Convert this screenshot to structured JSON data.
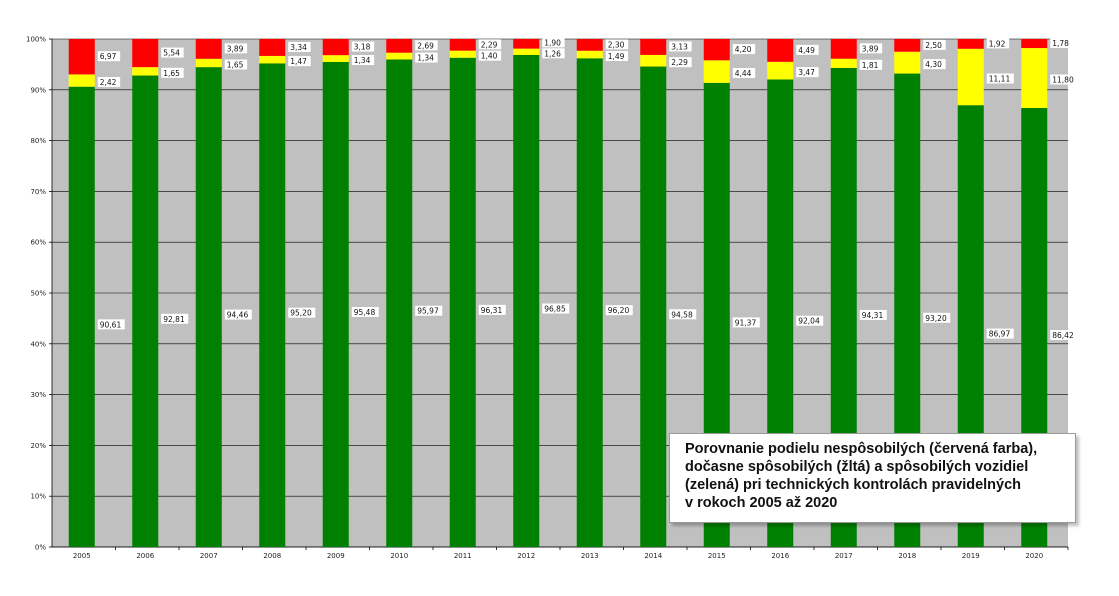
{
  "caption": "Porovnanie podielu nespôsobilých (červená farba),\ndočasne spôsobilých (žltá) a spôsobilých vozidiel\n(zelená) pri technických kontrolách pravidelných\nv rokoch 2005 až 2020",
  "chart_data": {
    "type": "bar",
    "stacked": true,
    "normalized": true,
    "categories": [
      "2005",
      "2006",
      "2007",
      "2008",
      "2009",
      "2010",
      "2011",
      "2012",
      "2013",
      "2014",
      "2015",
      "2016",
      "2017",
      "2018",
      "2019",
      "2020"
    ],
    "series": [
      {
        "name": "",
        "color": "#008000",
        "values": [
          90.61,
          92.81,
          94.46,
          95.2,
          95.48,
          95.97,
          96.31,
          96.85,
          96.2,
          94.58,
          91.37,
          92.04,
          94.31,
          93.2,
          86.97,
          86.42
        ]
      },
      {
        "name": "",
        "color": "#ffff00",
        "values": [
          2.42,
          1.65,
          1.65,
          1.47,
          1.34,
          1.34,
          1.4,
          1.26,
          1.49,
          2.29,
          4.44,
          3.47,
          1.81,
          4.3,
          11.11,
          11.8
        ]
      },
      {
        "name": "",
        "color": "#ff0000",
        "values": [
          6.97,
          5.54,
          3.89,
          3.34,
          3.18,
          2.69,
          2.29,
          1.9,
          2.3,
          3.13,
          4.2,
          4.49,
          3.89,
          2.5,
          1.92,
          1.78
        ]
      }
    ],
    "value_labels": {
      "green": [
        "90,61",
        "92,81",
        "94,46",
        "95,20",
        "95,48",
        "95,97",
        "96,31",
        "96,85",
        "96,20",
        "94,58",
        "91,37",
        "92,04",
        "94,31",
        "93,20",
        "86,97",
        "86,42"
      ],
      "yellow": [
        "2,42",
        "1,65",
        "1,65",
        "1,47",
        "1,34",
        "1,34",
        "1,40",
        "1,26",
        "1,49",
        "2,29",
        "4,44",
        "3,47",
        "1,81",
        "4,30",
        "11,11",
        "11,80"
      ],
      "red": [
        "6,97",
        "5,54",
        "3,89",
        "3,34",
        "3,18",
        "2,69",
        "2,29",
        "1,90",
        "2,30",
        "3,13",
        "4,20",
        "4,49",
        "3,89",
        "2,50",
        "1,92",
        "1,78"
      ]
    },
    "yticks": [
      "0%",
      "10%",
      "20%",
      "30%",
      "40%",
      "50%",
      "60%",
      "70%",
      "80%",
      "90%",
      "100%"
    ],
    "ylim": [
      0,
      100
    ],
    "grid": true,
    "plot_background": "#c0c0c0",
    "xlabel": "",
    "ylabel": "",
    "title": ""
  }
}
